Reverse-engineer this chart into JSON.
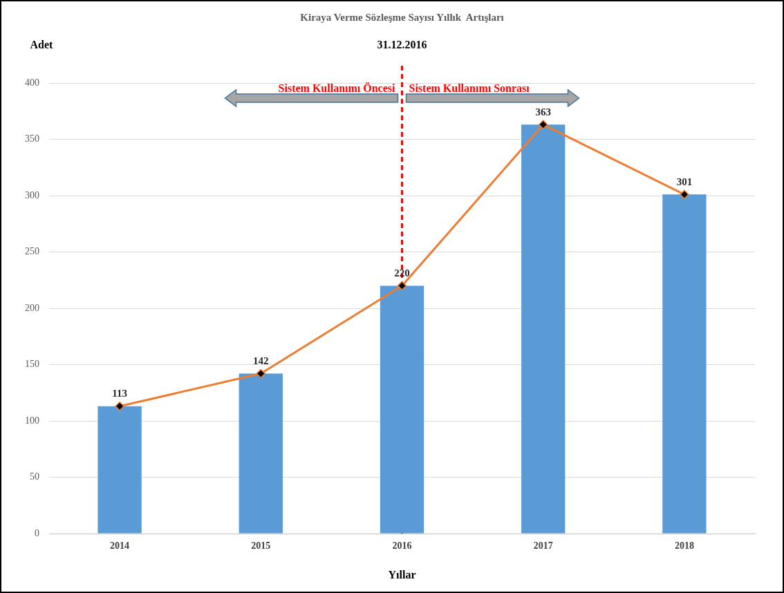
{
  "chart_data": {
    "type": "bar",
    "title": "Kiraya Verme Sözleşme Sayısı Yıllık  Artışları",
    "xlabel": "Yıllar",
    "ylabel": "Adet",
    "categories": [
      "2014",
      "2015",
      "2016",
      "2017",
      "2018"
    ],
    "series": [
      {
        "color": "#5b9bd5",
        "values": [
          113,
          142,
          220,
          363,
          301
        ]
      },
      {
        "type": "line",
        "color": "#ed7d31",
        "values": [
          113,
          142,
          220,
          363,
          301
        ],
        "marker": "diamond",
        "value_labels": [
          "113",
          "142",
          "220",
          "363",
          "301"
        ]
      }
    ],
    "ylim": [
      0,
      400
    ],
    "yticks": [
      0,
      50,
      100,
      150,
      200,
      250,
      300,
      350,
      400
    ],
    "grid": "y",
    "legend": false,
    "ref_lines": [
      {
        "axis": "x",
        "value": "2016",
        "label": "31.12.2016",
        "color": "#ff0000",
        "line_style": "dashed"
      }
    ],
    "annotations": [
      "Sistem Kullanımı Öncesi",
      "Sistem Kullanımı Sonrası"
    ]
  }
}
